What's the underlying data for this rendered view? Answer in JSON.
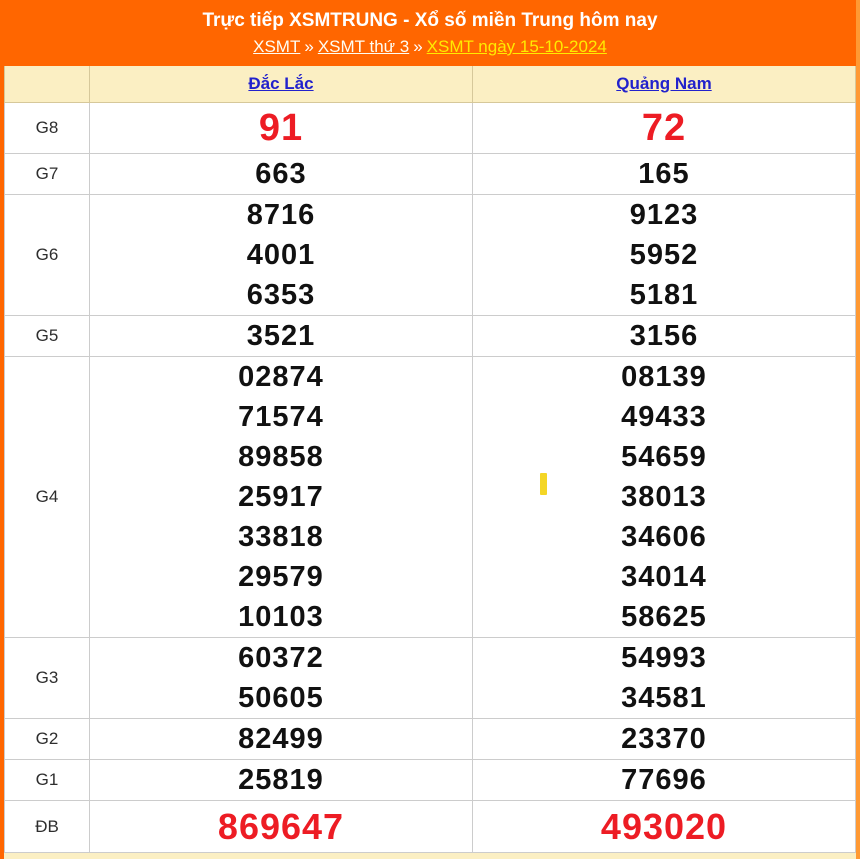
{
  "header": {
    "title": "Trực tiếp XSMTRUNG - Xổ số miền Trung hôm nay",
    "separator": "»",
    "breadcrumb": [
      {
        "label": "XSMT"
      },
      {
        "label": "XSMT thứ 3"
      },
      {
        "label": "XSMT ngày 15-10-2024"
      }
    ]
  },
  "table": {
    "columns": [
      "Đắc Lắc",
      "Quảng Nam"
    ],
    "rows": [
      {
        "prize": "G8",
        "style": "red-large",
        "values": [
          [
            "91"
          ],
          [
            "72"
          ]
        ]
      },
      {
        "prize": "G7",
        "style": "black",
        "values": [
          [
            "663"
          ],
          [
            "165"
          ]
        ]
      },
      {
        "prize": "G6",
        "style": "black",
        "values": [
          [
            "8716",
            "4001",
            "6353"
          ],
          [
            "9123",
            "5952",
            "5181"
          ]
        ]
      },
      {
        "prize": "G5",
        "style": "black",
        "values": [
          [
            "3521"
          ],
          [
            "3156"
          ]
        ]
      },
      {
        "prize": "G4",
        "style": "black",
        "values": [
          [
            "02874",
            "71574",
            "89858",
            "25917",
            "33818",
            "29579",
            "10103"
          ],
          [
            "08139",
            "49433",
            "54659",
            "38013",
            "34606",
            "34014",
            "58625"
          ]
        ]
      },
      {
        "prize": "G3",
        "style": "black",
        "values": [
          [
            "60372",
            "50605"
          ],
          [
            "54993",
            "34581"
          ]
        ]
      },
      {
        "prize": "G2",
        "style": "black",
        "values": [
          [
            "82499"
          ],
          [
            "23370"
          ]
        ]
      },
      {
        "prize": "G1",
        "style": "black",
        "values": [
          [
            "25819"
          ],
          [
            "77696"
          ]
        ]
      },
      {
        "prize": "ĐB",
        "style": "red-large",
        "values": [
          [
            "869647"
          ],
          [
            "493020"
          ]
        ]
      }
    ]
  },
  "colors": {
    "accent_orange": "#FF6600",
    "accent_orange_light": "#FF9933",
    "cream": "#FBEFC3",
    "link_blue": "#2222CC",
    "result_red": "#ED1C24",
    "breadcrumb_link": "#FFFDF2",
    "breadcrumb_current": "#FFEB00",
    "caret_yellow": "#F4D626"
  }
}
